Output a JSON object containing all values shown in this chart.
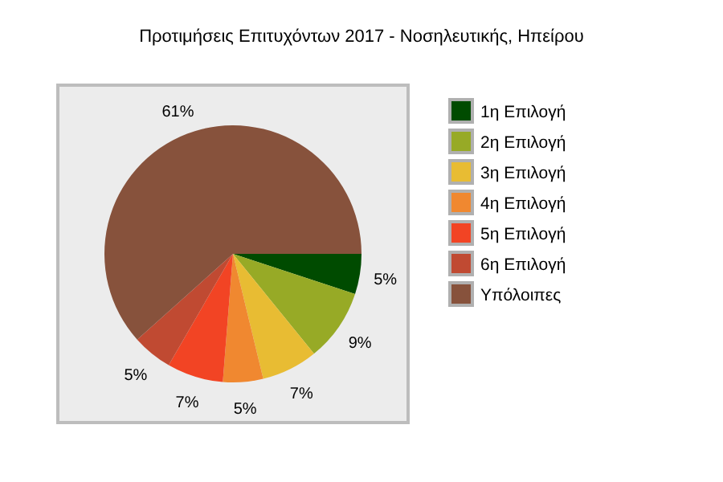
{
  "chart_data": {
    "type": "pie",
    "title": "Προτιμήσεις Επιτυχόντων 2017 - Νοσηλευτικής, Ηπείρου",
    "categories": [
      "1η Επιλογή",
      "2η Επιλογή",
      "3η Επιλογή",
      "4η Επιλογή",
      "5η Επιλογή",
      "6η Επιλογή",
      "Υπόλοιπες"
    ],
    "values": [
      5,
      9,
      7,
      5,
      7,
      5,
      61
    ],
    "colors": [
      "#004b00",
      "#97aa26",
      "#e8bc33",
      "#f08830",
      "#f24424",
      "#c04a32",
      "#87523c"
    ],
    "value_labels": [
      "5%",
      "9%",
      "7%",
      "5%",
      "7%",
      "5%",
      "61%"
    ],
    "legend": "right"
  }
}
